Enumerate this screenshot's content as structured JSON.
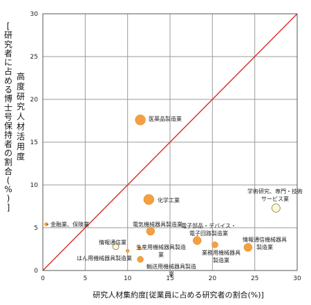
{
  "chart_data": {
    "type": "scatter",
    "title": "",
    "xlabel": "研究人材集約度[従業員に占める研究者の割合(%)]",
    "ylabel_outer": "[研究者に占める博士号保持者の割合(%)]",
    "ylabel_inner": "高度研究人材活用度",
    "xlim": [
      0,
      30
    ],
    "ylim": [
      0,
      30
    ],
    "x_ticks": [
      "0",
      "5",
      "10",
      "15",
      "20",
      "25",
      "30"
    ],
    "y_ticks": [
      "0",
      "5",
      "10",
      "15",
      "20",
      "25",
      "30"
    ],
    "grid": true,
    "reference_line": {
      "from": [
        0,
        0
      ],
      "to": [
        30,
        30
      ],
      "color": "#d9342b"
    },
    "points": [
      {
        "label": "医薬品製造業",
        "x": 11.5,
        "y": 17.6,
        "size": "large",
        "color": "#f4a040"
      },
      {
        "label": "化学工業",
        "x": 12.5,
        "y": 8.3,
        "size": "large",
        "color": "#f4a040"
      },
      {
        "label": "学術研究、専門・技術サービス業",
        "x": 27.5,
        "y": 7.3,
        "size": "medium",
        "color": "#fbf7d2"
      },
      {
        "label": "金融業、保険業",
        "x": 0.4,
        "y": 5.4,
        "size": "tiny",
        "color": "#f4a040"
      },
      {
        "label": "電気機械器具製造業",
        "x": 12.7,
        "y": 4.6,
        "size": "medium",
        "color": "#f4a040"
      },
      {
        "label": "電子部品・デバイス・電子回路製造業",
        "x": 18.2,
        "y": 3.5,
        "size": "medium",
        "color": "#f4a040"
      },
      {
        "label": "情報通信機械器具製造業",
        "x": 24.2,
        "y": 2.7,
        "size": "medium",
        "color": "#f4a040"
      },
      {
        "label": "業務用機械器具製造業",
        "x": 20.3,
        "y": 3.0,
        "size": "small",
        "color": "#f4a040"
      },
      {
        "label": "情報通信業",
        "x": 8.6,
        "y": 2.8,
        "size": "small",
        "color": "#fbf7d2"
      },
      {
        "label": "生産用機械器具製造業",
        "x": 11.4,
        "y": 2.6,
        "size": "tiny",
        "color": "#f4a040"
      },
      {
        "label": "はん用機械器具製造業",
        "x": 10.0,
        "y": 2.3,
        "size": "tiny",
        "color": "#f4a040"
      },
      {
        "label": "輸送用機械器具製造業",
        "x": 11.5,
        "y": 1.3,
        "size": "small",
        "color": "#f4a040"
      }
    ]
  },
  "annotations": [
    {
      "lines": [
        "医薬品製造業"
      ]
    },
    {
      "lines": [
        "化学工業"
      ]
    },
    {
      "lines": [
        "学術研究、専門・技術",
        "サービス業"
      ]
    },
    {
      "lines": [
        "・金融業、保険業"
      ]
    },
    {
      "lines": [
        "電気機械器具製造業"
      ]
    },
    {
      "lines": [
        "電子部品・デバイス・",
        "電子回路製造業"
      ]
    },
    {
      "lines": [
        "情報通信機械器具",
        "製造業"
      ]
    },
    {
      "lines": [
        "業務用機械器具",
        "製造業"
      ]
    },
    {
      "lines": [
        "情報通信業"
      ]
    },
    {
      "lines": [
        "生産用機械器具製造",
        "業"
      ]
    },
    {
      "lines": [
        "はん用機械器具製造業"
      ]
    },
    {
      "lines": [
        "輸送用機械器具製造",
        "業"
      ]
    }
  ]
}
